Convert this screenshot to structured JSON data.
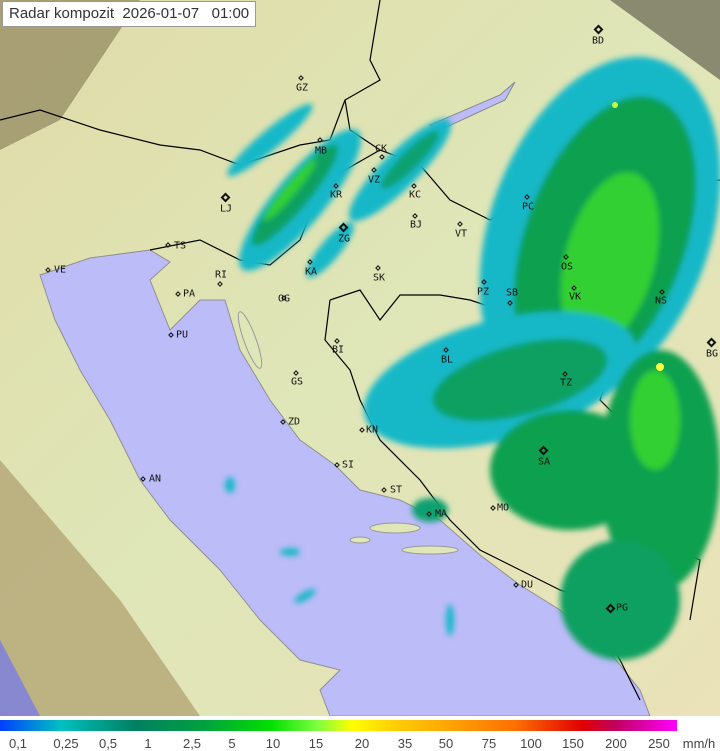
{
  "title": "Radar kompozit  2026-01-07   01:00",
  "legend": {
    "labels": [
      "0,1",
      "0,25",
      "0,5",
      "1",
      "2,5",
      "5",
      "10",
      "15",
      "20",
      "35",
      "50",
      "75",
      "100",
      "150",
      "200",
      "250"
    ],
    "unit": "mm/h"
  },
  "cities": [
    "GZ",
    "MB",
    "CK",
    "VZ",
    "KR",
    "LJ",
    "KC",
    "BJ",
    "VT",
    "ZG",
    "PC",
    "TS",
    "VE",
    "RI",
    "KA",
    "SK",
    "OG",
    "PA",
    "PZ",
    "SB",
    "OS",
    "VK",
    "NS",
    "BD",
    "BG",
    "PU",
    "BI",
    "BL",
    "GS",
    "TZ",
    "ZD",
    "KN",
    "SI",
    "AN",
    "SA",
    "ST",
    "MA",
    "MO",
    "DU",
    "PG"
  ],
  "colors": {
    "sea": "#bcbcf8",
    "land": "#e4e8b8",
    "coverage_outside": "#a89860",
    "light_rain": "#10b0c0",
    "moderate_rain": "#10a050",
    "heavy_rain": "#40e020"
  }
}
